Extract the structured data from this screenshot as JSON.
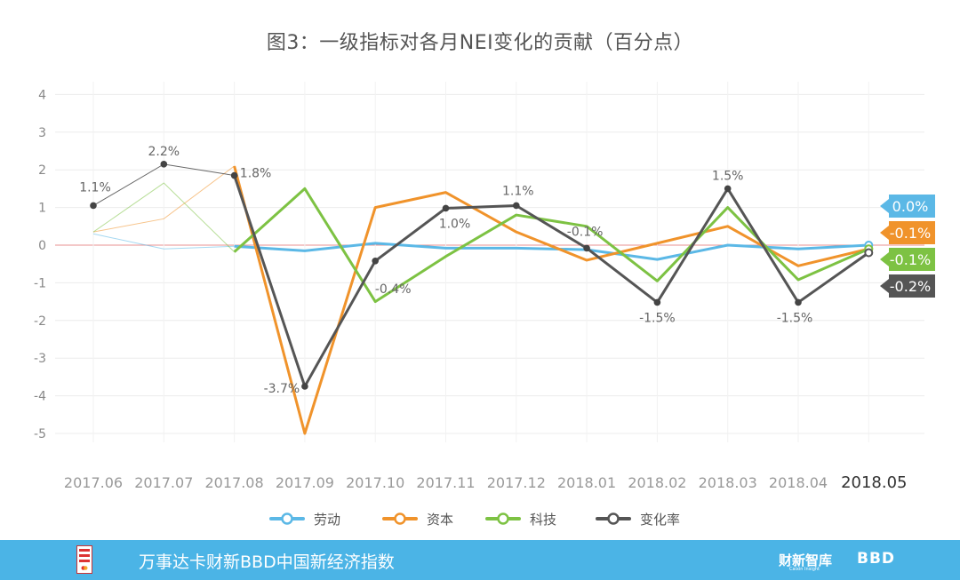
{
  "title": "图3：一级指标对各月NEI变化的贡献（百分点）",
  "footer": {
    "text": "万事达卡财新BBD中国新经济指数",
    "brand1": "财新智库",
    "brand1_sub": "Caixin Insight",
    "brand2": "BBD"
  },
  "chart_data": {
    "type": "line",
    "title": "图3：一级指标对各月NEI变化的贡献（百分点）",
    "categories": [
      "2017.06",
      "2017.07",
      "2017.08",
      "2017.09",
      "2017.10",
      "2017.11",
      "2017.12",
      "2018.01",
      "2018.02",
      "2018.03",
      "2018.04",
      "2018.05"
    ],
    "ylim": [
      -5,
      4
    ],
    "yticks": [
      4,
      3,
      2,
      1,
      0,
      -1,
      -2,
      -3,
      -4,
      -5
    ],
    "ytick_labels": [
      "4",
      "3",
      "2",
      "1",
      "0",
      "-1",
      "-2",
      "-3",
      "-4",
      "-5"
    ],
    "series": [
      {
        "name": "劳动",
        "color": "#5bb8e6",
        "values": [
          0.3,
          -0.1,
          -0.03,
          -0.15,
          0.05,
          -0.08,
          -0.08,
          -0.12,
          -0.38,
          0.0,
          -0.1,
          0.0
        ]
      },
      {
        "name": "资本",
        "color": "#f0932b",
        "values": [
          0.35,
          0.7,
          2.1,
          -5.0,
          1.0,
          1.4,
          0.35,
          -0.4,
          0.05,
          0.5,
          -0.55,
          -0.1
        ]
      },
      {
        "name": "科技",
        "color": "#7dc243",
        "values": [
          0.35,
          1.65,
          -0.18,
          1.5,
          -1.5,
          -0.3,
          0.8,
          0.5,
          -0.95,
          1.0,
          -0.92,
          -0.1
        ]
      },
      {
        "name": "变化率",
        "color": "#555555",
        "values": [
          1.05,
          2.15,
          1.85,
          -3.75,
          -0.42,
          0.98,
          1.05,
          -0.08,
          -1.52,
          1.5,
          -1.52,
          -0.2
        ]
      }
    ],
    "data_labels": [
      {
        "text": "1.1%",
        "category_index": 0
      },
      {
        "text": "2.2%",
        "category_index": 1
      },
      {
        "text": "1.8%",
        "category_index": 2
      },
      {
        "text": "-3.7%",
        "category_index": 3
      },
      {
        "text": "-0.4%",
        "category_index": 4
      },
      {
        "text": "1.0%",
        "category_index": 5
      },
      {
        "text": "1.1%",
        "category_index": 6
      },
      {
        "text": "-0.1%",
        "category_index": 7
      },
      {
        "text": "-1.5%",
        "category_index": 8
      },
      {
        "text": "1.5%",
        "category_index": 9
      },
      {
        "text": "-1.5%",
        "category_index": 10
      }
    ],
    "end_labels": [
      {
        "text": "0.0%",
        "series": "劳动",
        "color": "#5bb8e6"
      },
      {
        "text": "-0.1%",
        "series": "资本",
        "color": "#f0932b"
      },
      {
        "text": "-0.1%",
        "series": "科技",
        "color": "#7dc243"
      },
      {
        "text": "-0.2%",
        "series": "变化率",
        "color": "#555555"
      }
    ],
    "legend": [
      "劳动",
      "资本",
      "科技",
      "变化率"
    ],
    "legend_position": "bottom",
    "grid": true
  }
}
